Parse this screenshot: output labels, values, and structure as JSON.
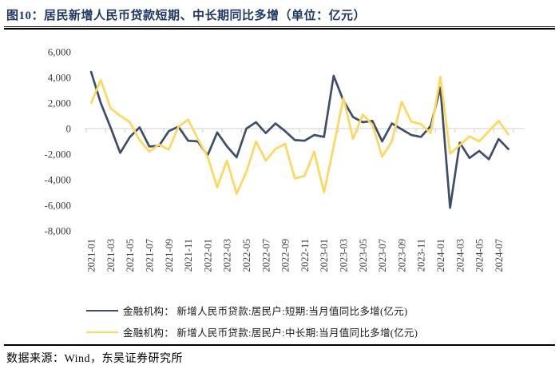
{
  "header": {
    "title": "图10：居民新增人民币贷款短期、中长期同比多增（单位：亿元）",
    "title_color": "#1f3864"
  },
  "footer": {
    "source": "数据来源：Wind，东吴证券研究所"
  },
  "colors": {
    "short_term_line": "#3e4e69",
    "medium_long_line": "#ffd75e",
    "zero_axis": "#d9d9d9",
    "tick_label": "#404040"
  },
  "legend": [
    {
      "label": "金融机构： 新增人民币贷款:居民户:短期:当月值同比多增(亿元)"
    },
    {
      "label": "金融机构： 新增人民币贷款:居民户:中长期:当月值同比多增(亿元)"
    }
  ],
  "chart_data": {
    "type": "line",
    "title": "居民新增人民币贷款短期、中长期同比多增",
    "unit": "亿元",
    "ylim": [
      -8000,
      6000
    ],
    "ytick_step": 2000,
    "grid": "zero-line-only",
    "legend_position": "bottom",
    "x_tick_every": 2,
    "categories": [
      "2021-01",
      "2021-02",
      "2021-03",
      "2021-04",
      "2021-05",
      "2021-06",
      "2021-07",
      "2021-08",
      "2021-09",
      "2021-10",
      "2021-11",
      "2021-12",
      "2022-01",
      "2022-02",
      "2022-03",
      "2022-04",
      "2022-05",
      "2022-06",
      "2022-07",
      "2022-08",
      "2022-09",
      "2022-10",
      "2022-11",
      "2022-12",
      "2023-01",
      "2023-02",
      "2023-03",
      "2023-04",
      "2023-05",
      "2023-06",
      "2023-07",
      "2023-08",
      "2023-09",
      "2023-10",
      "2023-11",
      "2023-12",
      "2024-01",
      "2024-02",
      "2024-03",
      "2024-04",
      "2024-05",
      "2024-06",
      "2024-07",
      "2024-08"
    ],
    "series": [
      {
        "name": "金融机构： 新增人民币贷款:居民户:短期:当月值同比多增(亿元)",
        "color": "#3e4e69",
        "values": [
          4430,
          2000,
          100,
          -1900,
          -650,
          100,
          -1400,
          -1350,
          -200,
          150,
          -950,
          -1000,
          -2100,
          -300,
          -1390,
          -2250,
          0,
          500,
          -350,
          400,
          -200,
          -900,
          -950,
          -500,
          -650,
          4130,
          2200,
          900,
          500,
          600,
          -1000,
          400,
          -50,
          -500,
          -650,
          200,
          3200,
          -6200,
          -1100,
          -2300,
          -1750,
          -2400,
          -820,
          -1600
        ]
      },
      {
        "name": "金融机构： 新增人民币贷款:居民户:中长期:当月值同比多增(亿元)",
        "color": "#ffd75e",
        "values": [
          2000,
          3800,
          1600,
          1000,
          500,
          -900,
          -1800,
          -1250,
          -1650,
          150,
          700,
          -800,
          -2200,
          -4600,
          -2500,
          -5100,
          -3400,
          -1000,
          -2500,
          -1600,
          -1200,
          -3900,
          -3700,
          -1800,
          -5000,
          -1400,
          2400,
          -800,
          1100,
          300,
          -2200,
          -1000,
          2100,
          550,
          350,
          -350,
          4050,
          -1950,
          -1300,
          -600,
          -1000,
          -200,
          600,
          -450
        ]
      }
    ]
  }
}
